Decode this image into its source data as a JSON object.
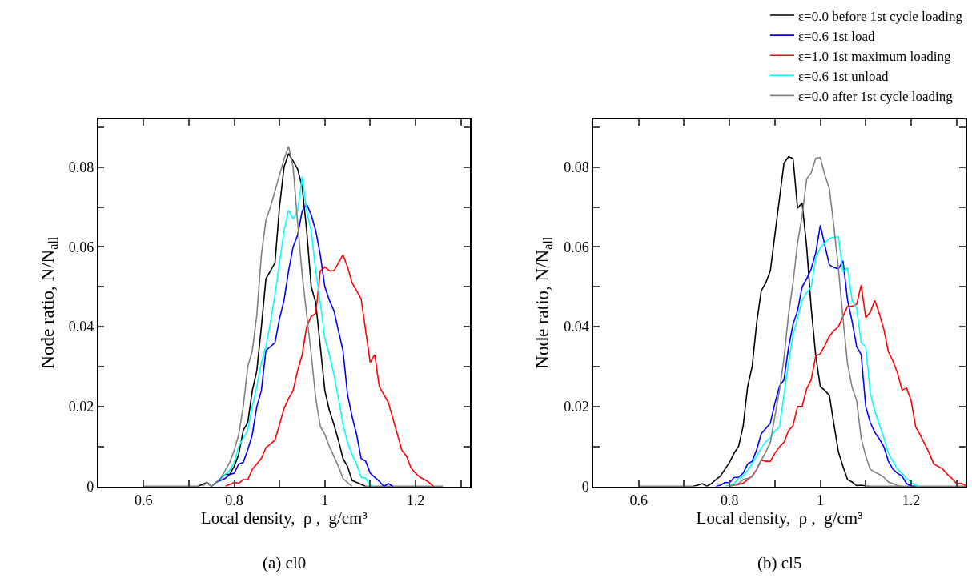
{
  "chart_data": [
    {
      "type": "line",
      "title": "(a) cl0",
      "xlabel": "Local density,  ρ ,  g/cm³",
      "ylabel": "Node ratio, N/N$_{all}$",
      "xlim": [
        0.5,
        1.32
      ],
      "ylim": [
        0,
        0.092
      ],
      "xticks": [
        {
          "value": 0.5,
          "label": null
        },
        0.6,
        {
          "value": 0.7,
          "label": null
        },
        0.8,
        {
          "value": 0.9,
          "label": null
        },
        {
          "value": 1,
          "label": "1"
        },
        {
          "value": 1.1,
          "label": null
        },
        1.2,
        {
          "value": 1.3,
          "label": null
        }
      ],
      "yticks": [
        {
          "value": 0,
          "label": "0"
        },
        {
          "value": 0.01,
          "label": null
        },
        0.02,
        {
          "value": 0.03,
          "label": null
        },
        0.04,
        {
          "value": 0.05,
          "label": null
        },
        0.06,
        {
          "value": 0.07,
          "label": null
        },
        0.08,
        {
          "value": 0.09,
          "label": null
        }
      ],
      "legend": "top right",
      "marker": "none",
      "line_style": "solid",
      "x": [
        0.6,
        0.72,
        0.73,
        0.74,
        0.75,
        0.76,
        0.77,
        0.78,
        0.79,
        0.8,
        0.81,
        0.82,
        0.83,
        0.84,
        0.85,
        0.86,
        0.87,
        0.88,
        0.89,
        0.9,
        0.91,
        0.92,
        0.93,
        0.94,
        0.95,
        0.96,
        0.97,
        0.98,
        0.99,
        1.0,
        1.01,
        1.02,
        1.03,
        1.04,
        1.05,
        1.06,
        1.07,
        1.08,
        1.09,
        1.1,
        1.11,
        1.12,
        1.13,
        1.14,
        1.15,
        1.16,
        1.17,
        1.18,
        1.19,
        1.2,
        1.21,
        1.22,
        1.23,
        1.24,
        1.25,
        1.26
      ],
      "series": [
        {
          "name": "ε=0.0 before 1st cycle loading",
          "color": "#000000",
          "values": [
            0,
            0,
            0.0005,
            0.001,
            0,
            0.001,
            0.002,
            0.003,
            0.003,
            0.005,
            0.008,
            0.014,
            0.016,
            0.024,
            0.029,
            0.04,
            0.052,
            0.054,
            0.056,
            0.07,
            0.08,
            0.0834,
            0.0815,
            0.0795,
            0.075,
            0.064,
            0.05,
            0.046,
            0.035,
            0.024,
            0.019,
            0.0155,
            0.0115,
            0.007,
            0.005,
            0.0015,
            0.001,
            0.0005,
            0,
            0,
            0,
            0,
            0,
            0,
            0,
            0,
            0,
            0,
            0,
            0,
            0,
            0,
            0,
            0,
            0,
            0
          ]
        },
        {
          "name": "ε=0.6 1st load",
          "color": "#0000ff",
          "values": [
            null,
            null,
            null,
            null,
            0,
            0.001,
            0.0015,
            0.002,
            0.003,
            0.0033,
            0.0056,
            0.006,
            0.0092,
            0.013,
            0.02,
            0.024,
            0.034,
            0.035,
            0.036,
            0.042,
            0.0466,
            0.054,
            0.06,
            0.063,
            0.069,
            0.0707,
            0.068,
            0.064,
            0.058,
            0.05,
            0.0466,
            0.044,
            0.039,
            0.034,
            0.023,
            0.0175,
            0.013,
            0.007,
            0.0063,
            0.0033,
            0.0023,
            0.0013,
            0,
            0.0007,
            0,
            null,
            null,
            null,
            null,
            null,
            null,
            null,
            null,
            null,
            null,
            null
          ]
        },
        {
          "name": "ε=1.0 1st maximum loading",
          "color": "#ff0000",
          "values": [
            null,
            null,
            null,
            null,
            null,
            null,
            null,
            0,
            0.0005,
            0.001,
            0.0008,
            0.0017,
            0.0017,
            0.0043,
            0.0056,
            0.007,
            0.0097,
            0.0106,
            0.0116,
            0.0155,
            0.0195,
            0.022,
            0.024,
            0.029,
            0.033,
            0.04,
            0.0426,
            0.0433,
            0.054,
            0.055,
            0.054,
            0.054,
            0.056,
            0.058,
            0.055,
            0.051,
            0.049,
            0.047,
            0.039,
            0.031,
            0.033,
            0.025,
            0.023,
            0.021,
            0.017,
            0.013,
            0.009,
            0.0076,
            0.0046,
            0.0033,
            0.0023,
            0.0017,
            0.001,
            0,
            null,
            null
          ]
        },
        {
          "name": "ε=0.6 1st unload",
          "color": "#00ffff",
          "values": [
            null,
            null,
            null,
            null,
            0,
            0.001,
            0.002,
            0.003,
            0.004,
            0.006,
            0.01,
            0.012,
            0.014,
            0.02,
            0.025,
            0.031,
            0.035,
            0.041,
            0.048,
            0.056,
            0.064,
            0.0692,
            0.067,
            0.069,
            0.0776,
            0.069,
            0.064,
            0.054,
            0.046,
            0.037,
            0.033,
            0.028,
            0.022,
            0.0155,
            0.011,
            0.008,
            0.0056,
            0.0023,
            0.002,
            0.0003,
            0,
            null,
            null,
            null,
            null,
            null,
            null,
            null,
            null,
            null,
            null,
            null,
            null,
            null,
            null,
            null
          ]
        },
        {
          "name": "ε=0.0 after 1st cycle loading",
          "color": "#808080",
          "values": [
            null,
            null,
            0,
            0.001,
            0,
            0.001,
            0.002,
            0.004,
            0.006,
            0.009,
            0.013,
            0.02,
            0.03,
            0.034,
            0.043,
            0.058,
            0.0667,
            0.07,
            0.074,
            0.078,
            0.082,
            0.0852,
            0.08,
            0.066,
            0.053,
            0.043,
            0.033,
            0.022,
            0.015,
            0.013,
            0.01,
            0.0075,
            0.005,
            0.002,
            0.001,
            0,
            null,
            null,
            null,
            null,
            null,
            null,
            null,
            null,
            null,
            null,
            null,
            null,
            null,
            null,
            null,
            null,
            null,
            null,
            null,
            null
          ]
        }
      ]
    },
    {
      "type": "line",
      "title": "(b) cl5",
      "xlabel": "Local density,  ρ ,  g/cm³",
      "ylabel": "Node ratio, N/N$_{all}$",
      "xlim": [
        0.5,
        1.32
      ],
      "ylim": [
        0,
        0.092
      ],
      "xticks": [
        {
          "value": 0.5,
          "label": null
        },
        0.6,
        {
          "value": 0.7,
          "label": null
        },
        0.8,
        {
          "value": 0.9,
          "label": null
        },
        {
          "value": 1,
          "label": "1"
        },
        {
          "value": 1.1,
          "label": null
        },
        1.2,
        {
          "value": 1.3,
          "label": null
        }
      ],
      "yticks": [
        {
          "value": 0,
          "label": "0"
        },
        {
          "value": 0.01,
          "label": null
        },
        0.02,
        {
          "value": 0.03,
          "label": null
        },
        0.04,
        {
          "value": 0.05,
          "label": null
        },
        0.06,
        {
          "value": 0.07,
          "label": null
        },
        0.08,
        {
          "value": 0.09,
          "label": null
        }
      ],
      "marker": "none",
      "line_style": "solid",
      "x": [
        0.6,
        0.72,
        0.73,
        0.74,
        0.75,
        0.76,
        0.77,
        0.78,
        0.79,
        0.8,
        0.81,
        0.82,
        0.83,
        0.84,
        0.85,
        0.86,
        0.87,
        0.88,
        0.89,
        0.9,
        0.91,
        0.92,
        0.93,
        0.94,
        0.95,
        0.96,
        0.97,
        0.98,
        0.99,
        1.0,
        1.01,
        1.02,
        1.03,
        1.04,
        1.05,
        1.06,
        1.07,
        1.08,
        1.09,
        1.1,
        1.11,
        1.12,
        1.13,
        1.14,
        1.15,
        1.16,
        1.17,
        1.18,
        1.19,
        1.2,
        1.21,
        1.22,
        1.23,
        1.24,
        1.25,
        1.26,
        1.27,
        1.28,
        1.29,
        1.3,
        1.31,
        1.32
      ],
      "series": [
        {
          "color": "#000000",
          "values": [
            0,
            0,
            0.0003,
            0.0007,
            0,
            0.0007,
            0.0017,
            0.0026,
            0.0043,
            0.006,
            0.0083,
            0.01,
            0.015,
            0.025,
            0.03,
            0.041,
            0.049,
            0.051,
            0.054,
            0.063,
            0.072,
            0.081,
            0.0826,
            0.0822,
            0.0697,
            0.071,
            0.06,
            0.0446,
            0.0327,
            0.025,
            0.024,
            0.0228,
            0.0155,
            0.0086,
            0.005,
            0.0017,
            0.0011,
            0.0002,
            0.0003,
            0.0001,
            0,
            0,
            0,
            0,
            0,
            0,
            0,
            0,
            0,
            0,
            0,
            0,
            0,
            0,
            0,
            0,
            0,
            0,
            0,
            0,
            0,
            0
          ]
        },
        {
          "color": "#0000ff",
          "values": [
            null,
            null,
            null,
            null,
            null,
            null,
            0,
            0.0003,
            0.001,
            0.0009,
            0.0022,
            0.0023,
            0.0033,
            0.0056,
            0.0063,
            0.0092,
            0.0132,
            0.0145,
            0.0158,
            0.0208,
            0.025,
            0.0267,
            0.0347,
            0.0406,
            0.044,
            0.05,
            0.052,
            0.0545,
            0.0585,
            0.0654,
            0.0604,
            0.0555,
            0.0548,
            0.0545,
            0.0565,
            0.0466,
            0.0413,
            0.035,
            0.033,
            0.02,
            0.016,
            0.0135,
            0.0119,
            0.0099,
            0.0063,
            0.0043,
            0.0033,
            0.0026,
            0.0007,
            0.0001,
            0,
            null,
            null,
            null,
            null,
            null,
            null,
            null,
            null,
            null,
            null,
            null
          ]
        },
        {
          "color": "#ff0000",
          "values": [
            null,
            null,
            null,
            null,
            null,
            null,
            null,
            null,
            null,
            0,
            0.0003,
            0.0005,
            0.0008,
            0.0017,
            0.0026,
            0.0043,
            0.0066,
            0.0063,
            0.0063,
            0.0083,
            0.0099,
            0.011,
            0.0139,
            0.0152,
            0.02,
            0.02,
            0.0244,
            0.0267,
            0.0327,
            0.0332,
            0.0353,
            0.0376,
            0.039,
            0.04,
            0.0426,
            0.0451,
            0.0451,
            0.0456,
            0.0504,
            0.0423,
            0.0436,
            0.0466,
            0.0433,
            0.0393,
            0.0337,
            0.0314,
            0.0284,
            0.0241,
            0.0246,
            0.0215,
            0.0149,
            0.0129,
            0.0106,
            0.0083,
            0.0056,
            0.005,
            0.0043,
            0.003,
            0.002,
            0.0007,
            0.0008,
            0.0002
          ]
        },
        {
          "color": "#00ffff",
          "values": [
            null,
            null,
            null,
            null,
            null,
            null,
            null,
            null,
            0,
            0.0003,
            0.0007,
            0.002,
            0.0026,
            0.004,
            0.0056,
            0.0076,
            0.0096,
            0.0112,
            0.0122,
            0.0139,
            0.0149,
            0.0228,
            0.0307,
            0.038,
            0.042,
            0.0466,
            0.0485,
            0.05,
            0.0571,
            0.0598,
            0.061,
            0.0621,
            0.0624,
            0.0625,
            0.0538,
            0.0548,
            0.0466,
            0.0446,
            0.036,
            0.035,
            0.0234,
            0.0188,
            0.0155,
            0.0122,
            0.0083,
            0.0063,
            0.0043,
            0.0033,
            0.002,
            0.001,
            0.0003,
            0,
            null,
            null,
            null,
            null,
            null,
            null,
            null,
            null,
            null,
            null
          ]
        },
        {
          "color": "#808080",
          "values": [
            null,
            null,
            null,
            null,
            null,
            null,
            null,
            null,
            null,
            0,
            0.0003,
            0.0007,
            0.0017,
            0.002,
            0.0024,
            0.0043,
            0.0066,
            0.0086,
            0.011,
            0.0175,
            0.024,
            0.032,
            0.043,
            0.051,
            0.061,
            0.0677,
            0.077,
            0.0786,
            0.0822,
            0.0824,
            0.078,
            0.0746,
            0.065,
            0.0545,
            0.042,
            0.0307,
            0.0248,
            0.0215,
            0.012,
            0.0076,
            0.0043,
            0.0036,
            0.003,
            0.0023,
            0.0011,
            0.0007,
            0.0002,
            0,
            null,
            null,
            null,
            null,
            null,
            null,
            null,
            null,
            null,
            null,
            null,
            null,
            null,
            null
          ]
        }
      ]
    }
  ]
}
